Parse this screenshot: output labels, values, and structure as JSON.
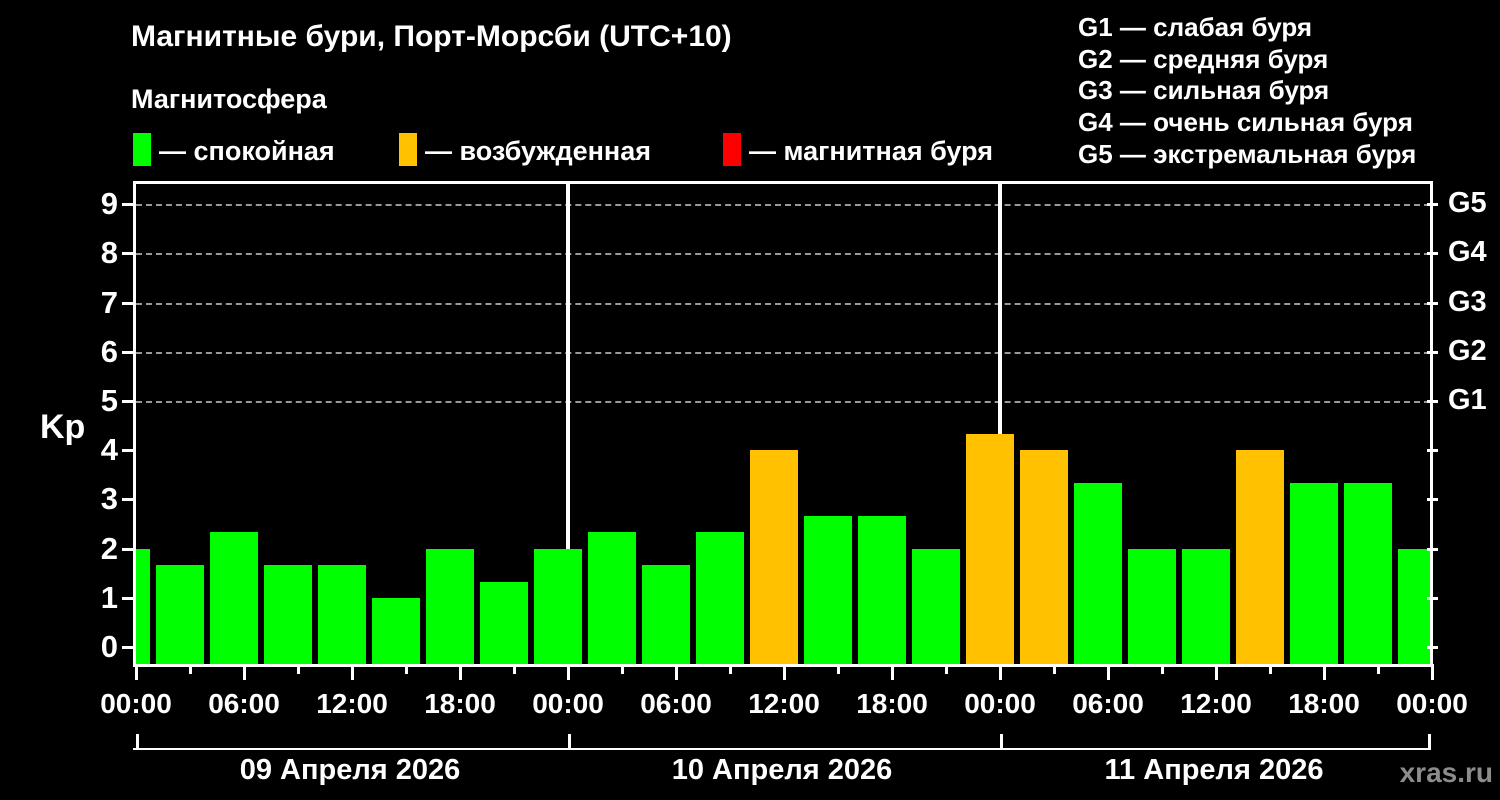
{
  "title": "Магнитные бури, Порт-Морсби (UTC+10)",
  "subtitle": "Магнитосфера",
  "legend": {
    "items": [
      {
        "name": "quiet",
        "label": "— спокойная",
        "color": "#00ff00"
      },
      {
        "name": "excited",
        "label": "— возбужденная",
        "color": "#ffc100"
      },
      {
        "name": "storm",
        "label": "— магнитная буря",
        "color": "#ff0000"
      }
    ]
  },
  "g_scale_legend": {
    "lines": [
      "G1 — слабая буря",
      "G2 — средняя буря",
      "G3 — сильная буря",
      "G4 — очень сильная буря",
      "G5 — экстремальная буря"
    ]
  },
  "watermark": "xras.ru",
  "chart_data": {
    "type": "bar",
    "title": "Магнитные бури, Порт-Морсби (UTC+10)",
    "ylabel": "Kp",
    "ylim": [
      0,
      9.5
    ],
    "y_ticks": [
      0,
      1,
      2,
      3,
      4,
      5,
      6,
      7,
      8,
      9
    ],
    "grid_levels": [
      5,
      6,
      7,
      8,
      9
    ],
    "right_axis_labels": [
      {
        "value": 5,
        "label": "G1"
      },
      {
        "value": 6,
        "label": "G2"
      },
      {
        "value": 7,
        "label": "G3"
      },
      {
        "value": 8,
        "label": "G4"
      },
      {
        "value": 9,
        "label": "G5"
      }
    ],
    "x_unit": "hours",
    "x_range_hours": [
      0,
      72
    ],
    "x_tick_step_hours": 3,
    "x_label_step_hours": 6,
    "time_label_cycle": [
      "00:00",
      "06:00",
      "12:00",
      "18:00"
    ],
    "day_boundaries_hours": [
      0,
      24,
      48,
      72
    ],
    "days": [
      "09 Апреля 2026",
      "10 Апреля 2026",
      "11 Апреля 2026"
    ],
    "series": [
      {
        "name": "Kp index (3-hour)",
        "x_hours": [
          0,
          3,
          6,
          9,
          12,
          15,
          18,
          21,
          24,
          27,
          30,
          33,
          36,
          39,
          42,
          45,
          48,
          51,
          54,
          57,
          60,
          63,
          66,
          69,
          72
        ],
        "values": [
          2.0,
          1.67,
          2.33,
          1.67,
          1.67,
          1.0,
          2.0,
          1.33,
          2.0,
          2.33,
          1.67,
          2.33,
          4.0,
          2.67,
          2.67,
          2.0,
          4.33,
          4.0,
          3.33,
          2.0,
          2.0,
          4.0,
          3.33,
          3.33,
          2.0
        ]
      }
    ],
    "color_rules": {
      "quiet_below": 4,
      "quiet_color": "#00ff00",
      "excited_below": 5,
      "excited_color": "#ffc100",
      "storm_color": "#ff0000"
    },
    "legend_position": "top",
    "grid": "dashed-horizontal-on-G-levels"
  }
}
